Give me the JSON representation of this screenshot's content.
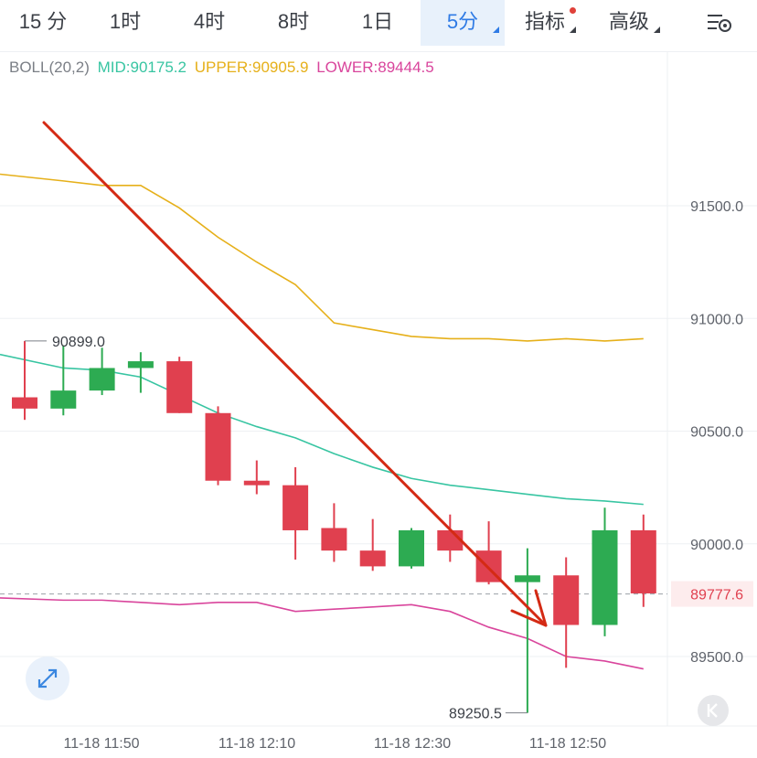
{
  "tabs": [
    {
      "label": "15 分"
    },
    {
      "label": "1时"
    },
    {
      "label": "4时"
    },
    {
      "label": "8时"
    },
    {
      "label": "1日"
    },
    {
      "label": "5分",
      "active": true,
      "dropdown": true
    },
    {
      "label": "指标",
      "dropdown": true,
      "badge": true
    },
    {
      "label": "高级",
      "dropdown": true
    }
  ],
  "settings_icon": "chart-settings-icon",
  "legend": {
    "name": "BOLL(20,2)",
    "mid": "MID:90175.2",
    "upper": "UPPER:90905.9",
    "lower": "LOWER:89444.5"
  },
  "colors": {
    "up": "#2dab52",
    "down": "#e0404f",
    "mid": "#38c5a2",
    "upper": "#e6b01a",
    "lower": "#d9459c",
    "arrow": "#d42a14",
    "active_tab": "#2f7be5"
  },
  "chart_data": {
    "type": "candlestick",
    "y_ticks": [
      91500,
      91000,
      90500,
      90000,
      89500
    ],
    "y_tick_labels": [
      "91500.0",
      "91000.0",
      "90500.0",
      "90000.0",
      "89500.0"
    ],
    "x_tick_labels": [
      "11-18 11:50",
      "11-18 12:10",
      "11-18 12:30",
      "11-18 12:50"
    ],
    "grid": true,
    "current_price": 89777.6,
    "current_price_label": "89777.6",
    "max_label": "90899.0",
    "min_label": "89250.5",
    "candles": [
      {
        "o": 90650,
        "h": 90900,
        "l": 90550,
        "c": 90600
      },
      {
        "o": 90600,
        "h": 90880,
        "l": 90570,
        "c": 90680
      },
      {
        "o": 90680,
        "h": 90870,
        "l": 90660,
        "c": 90780
      },
      {
        "o": 90780,
        "h": 90850,
        "l": 90670,
        "c": 90810
      },
      {
        "o": 90810,
        "h": 90830,
        "l": 90580,
        "c": 90580
      },
      {
        "o": 90580,
        "h": 90610,
        "l": 90260,
        "c": 90280
      },
      {
        "o": 90280,
        "h": 90370,
        "l": 90220,
        "c": 90260
      },
      {
        "o": 90260,
        "h": 90340,
        "l": 89930,
        "c": 90060
      },
      {
        "o": 90070,
        "h": 90180,
        "l": 89920,
        "c": 89970
      },
      {
        "o": 89970,
        "h": 90110,
        "l": 89880,
        "c": 89900
      },
      {
        "o": 89900,
        "h": 90070,
        "l": 89890,
        "c": 90060
      },
      {
        "o": 90060,
        "h": 90130,
        "l": 89920,
        "c": 89970
      },
      {
        "o": 89970,
        "h": 90100,
        "l": 89820,
        "c": 89830
      },
      {
        "o": 89830,
        "h": 89980,
        "l": 89250,
        "c": 89860
      },
      {
        "o": 89860,
        "h": 89940,
        "l": 89450,
        "c": 89640
      },
      {
        "o": 89640,
        "h": 90160,
        "l": 89590,
        "c": 90060
      },
      {
        "o": 90060,
        "h": 90130,
        "l": 89720,
        "c": 89780
      }
    ],
    "boll_x": [
      0,
      1,
      2,
      3,
      4,
      5,
      6,
      7,
      8,
      9,
      10,
      11,
      12,
      13,
      14,
      15,
      16
    ],
    "boll_upper": [
      91640,
      91610,
      91590,
      91590,
      91490,
      91360,
      91250,
      91150,
      90980,
      90950,
      90920,
      90910,
      90910,
      90900,
      90910,
      90900,
      90910
    ],
    "boll_mid": [
      90840,
      90780,
      90770,
      90740,
      90660,
      90580,
      90520,
      90470,
      90400,
      90340,
      90290,
      90260,
      90240,
      90220,
      90200,
      90190,
      90175
    ],
    "boll_lower": [
      89760,
      89750,
      89750,
      89740,
      89730,
      89740,
      89740,
      89700,
      89710,
      89720,
      89730,
      89700,
      89630,
      89580,
      89500,
      89480,
      89445
    ]
  }
}
